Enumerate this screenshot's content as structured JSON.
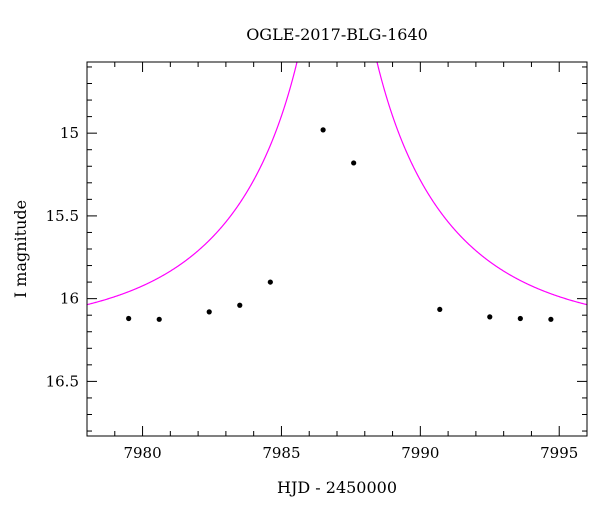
{
  "chart_data": {
    "type": "scatter",
    "title": "OGLE-2017-BLG-1640",
    "xlabel": "HJD - 2450000",
    "ylabel": "I magnitude",
    "xlim": [
      7978,
      7996
    ],
    "ylim": [
      16.83,
      14.57
    ],
    "y_inverted": true,
    "grid": false,
    "legend": "none",
    "x_major_ticks": [
      7980,
      7985,
      7990,
      7995
    ],
    "x_tick_labels": [
      "7980",
      "7985",
      "7990",
      "7995"
    ],
    "y_major_ticks": [
      15,
      15.5,
      16,
      16.5
    ],
    "y_tick_labels": [
      "15",
      "15.5",
      "16",
      "16.5"
    ],
    "series": [
      {
        "kind": "points",
        "color": "#000000",
        "x": [
          7979.5,
          7980.6,
          7982.4,
          7983.5,
          7984.6,
          7986.5,
          7987.6,
          7990.7,
          7992.5,
          7993.6,
          7994.7
        ],
        "y": [
          16.12,
          16.125,
          16.08,
          16.04,
          15.9,
          14.98,
          15.18,
          16.065,
          16.11,
          16.12,
          16.125
        ]
      },
      {
        "kind": "model",
        "color": "#ff00ff",
        "model": {
          "t0": 7987.0,
          "tE": 6.5,
          "u0": 0.05,
          "m_base": 16.2
        }
      }
    ]
  }
}
